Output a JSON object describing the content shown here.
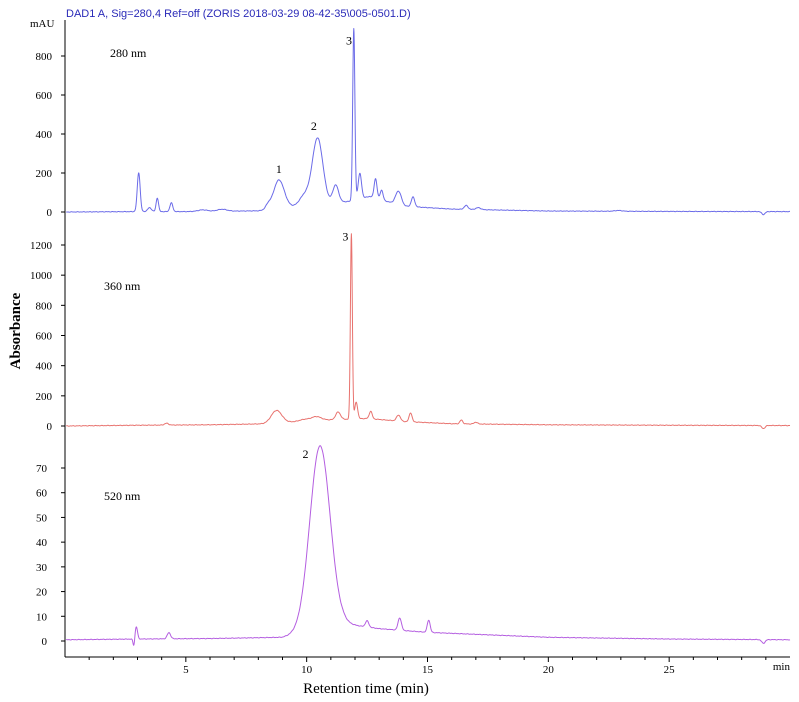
{
  "header": {
    "title": "DAD1 A, Sig=280,4 Ref=off (ZORIS 2018-03-29 08-42-35\\005-0501.D)",
    "unit": "mAU"
  },
  "chart_data": {
    "type": "line",
    "xlabel": "Retention time (min)",
    "ylabel": "Absorbance",
    "x_unit": "min",
    "xlim": [
      0,
      30
    ],
    "x_ticks": [
      5,
      10,
      15,
      20,
      25
    ],
    "grid": false,
    "colors": {
      "280 nm": "#6b6be8",
      "360 nm": "#e8726e",
      "520 nm": "#b45ee0"
    },
    "panels": [
      {
        "name": "280 nm",
        "ylim": [
          -10,
          930
        ],
        "y_ticks": [
          0,
          200,
          400,
          600,
          800
        ],
        "peak_labels": [
          {
            "text": "1",
            "x": 8.85,
            "y": 200
          },
          {
            "text": "2",
            "x": 10.3,
            "y": 420
          },
          {
            "text": "3",
            "x": 11.75,
            "y": 860
          }
        ],
        "baseline": [
          [
            0,
            0
          ],
          [
            3,
            2
          ],
          [
            5,
            2
          ],
          [
            8,
            6
          ],
          [
            9.2,
            25
          ],
          [
            11.8,
            55
          ],
          [
            12.6,
            80
          ],
          [
            14,
            30
          ],
          [
            16,
            15
          ],
          [
            20,
            5
          ],
          [
            25,
            3
          ],
          [
            30,
            2
          ]
        ],
        "peaks": [
          {
            "x": 3.05,
            "h": 200,
            "w": 0.06
          },
          {
            "x": 3.5,
            "h": 20,
            "w": 0.08
          },
          {
            "x": 3.82,
            "h": 70,
            "w": 0.05
          },
          {
            "x": 4.4,
            "h": 45,
            "w": 0.06
          },
          {
            "x": 5.7,
            "h": 8,
            "w": 0.2
          },
          {
            "x": 6.5,
            "h": 10,
            "w": 0.2
          },
          {
            "x": 8.4,
            "h": 20,
            "w": 0.1
          },
          {
            "x": 8.85,
            "h": 145,
            "w": 0.22
          },
          {
            "x": 9.9,
            "h": 50,
            "w": 0.2
          },
          {
            "x": 10.45,
            "h": 340,
            "w": 0.22
          },
          {
            "x": 11.2,
            "h": 90,
            "w": 0.12
          },
          {
            "x": 11.95,
            "h": 880,
            "w": 0.045
          },
          {
            "x": 12.2,
            "h": 130,
            "w": 0.07
          },
          {
            "x": 12.85,
            "h": 100,
            "w": 0.06
          },
          {
            "x": 13.1,
            "h": 50,
            "w": 0.06
          },
          {
            "x": 13.8,
            "h": 70,
            "w": 0.12
          },
          {
            "x": 14.4,
            "h": 50,
            "w": 0.07
          },
          {
            "x": 16.6,
            "h": 20,
            "w": 0.08
          },
          {
            "x": 17.1,
            "h": 10,
            "w": 0.1
          },
          {
            "x": 22.9,
            "h": 4,
            "w": 0.15
          },
          {
            "x": 28.9,
            "h": -15,
            "w": 0.07
          }
        ]
      },
      {
        "name": "360 nm",
        "ylim": [
          -30,
          1300
        ],
        "y_ticks": [
          0,
          200,
          400,
          600,
          800,
          1000,
          1200
        ],
        "peak_labels": [
          {
            "text": "3",
            "x": 11.6,
            "y": 1230
          }
        ],
        "baseline": [
          [
            0,
            0
          ],
          [
            3,
            5
          ],
          [
            6,
            8
          ],
          [
            8.5,
            15
          ],
          [
            10,
            35
          ],
          [
            12.5,
            50
          ],
          [
            14,
            30
          ],
          [
            16,
            15
          ],
          [
            20,
            8
          ],
          [
            25,
            5
          ],
          [
            30,
            3
          ]
        ],
        "peaks": [
          {
            "x": 4.2,
            "h": 12,
            "w": 0.08
          },
          {
            "x": 8.75,
            "h": 85,
            "w": 0.22
          },
          {
            "x": 9.9,
            "h": 10,
            "w": 0.2
          },
          {
            "x": 10.4,
            "h": 25,
            "w": 0.2
          },
          {
            "x": 11.3,
            "h": 50,
            "w": 0.1
          },
          {
            "x": 11.85,
            "h": 1230,
            "w": 0.04
          },
          {
            "x": 12.05,
            "h": 110,
            "w": 0.06
          },
          {
            "x": 12.65,
            "h": 50,
            "w": 0.06
          },
          {
            "x": 13.8,
            "h": 40,
            "w": 0.08
          },
          {
            "x": 14.3,
            "h": 60,
            "w": 0.06
          },
          {
            "x": 16.4,
            "h": 25,
            "w": 0.06
          },
          {
            "x": 17.0,
            "h": 12,
            "w": 0.07
          },
          {
            "x": 28.9,
            "h": -20,
            "w": 0.07
          }
        ]
      },
      {
        "name": "520 nm",
        "ylim": [
          -2,
          78
        ],
        "y_ticks": [
          0,
          10,
          20,
          30,
          40,
          50,
          60,
          70
        ],
        "peak_labels": [
          {
            "text": "2",
            "x": 9.95,
            "y": 74
          }
        ],
        "baseline": [
          [
            0,
            0.5
          ],
          [
            3,
            0.8
          ],
          [
            6,
            1
          ],
          [
            9,
            1.5
          ],
          [
            11.5,
            7
          ],
          [
            13,
            5
          ],
          [
            15,
            3.5
          ],
          [
            20,
            1.5
          ],
          [
            25,
            0.8
          ],
          [
            30,
            0.5
          ]
        ],
        "peaks": [
          {
            "x": 2.85,
            "h": -3,
            "w": 0.035
          },
          {
            "x": 2.95,
            "h": 5,
            "w": 0.05
          },
          {
            "x": 4.3,
            "h": 2.5,
            "w": 0.07
          },
          {
            "x": 10.55,
            "h": 74,
            "w": 0.42
          },
          {
            "x": 12.5,
            "h": 2.5,
            "w": 0.07
          },
          {
            "x": 13.85,
            "h": 5,
            "w": 0.07
          },
          {
            "x": 15.05,
            "h": 5,
            "w": 0.06
          },
          {
            "x": 28.9,
            "h": -1.5,
            "w": 0.07
          }
        ]
      }
    ]
  }
}
